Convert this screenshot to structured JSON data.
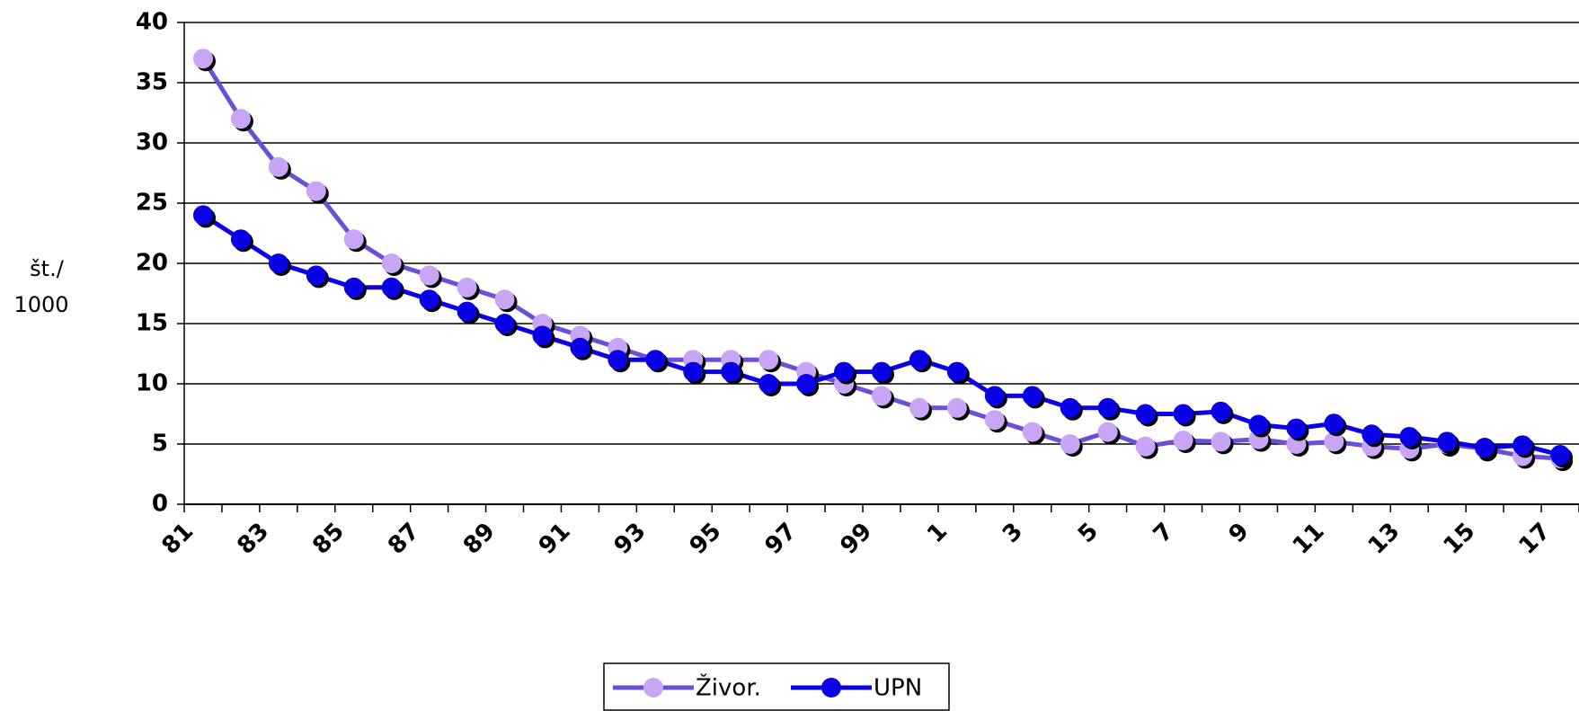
{
  "chart_data": {
    "type": "line",
    "y_label": [
      "št./",
      "1000"
    ],
    "categories": [
      "81",
      null,
      "83",
      null,
      "85",
      null,
      "87",
      null,
      "89",
      null,
      "91",
      null,
      "93",
      null,
      "95",
      null,
      "97",
      null,
      "99",
      null,
      "1",
      null,
      "3",
      null,
      "5",
      null,
      "7",
      null,
      "9",
      null,
      "11",
      null,
      "13",
      null,
      "15",
      null,
      "17"
    ],
    "series": [
      {
        "name": "Živor.",
        "color": "#6a4fd8",
        "marker_color": "#c9a6f5",
        "values": [
          37,
          32,
          28,
          26,
          22,
          20,
          19,
          18,
          17,
          15,
          14,
          13,
          12,
          12,
          12,
          12,
          11,
          10,
          9,
          8,
          8,
          7,
          6,
          5,
          6,
          4.8,
          5.3,
          5.2,
          5.4,
          5,
          5.2,
          4.8,
          4.6,
          5,
          4.6,
          4,
          3.8
        ]
      },
      {
        "name": "UPN",
        "color": "#0a00e6",
        "marker_color": "#0a00e6",
        "values": [
          24,
          22,
          20,
          19,
          18,
          18,
          17,
          16,
          15,
          14,
          13,
          12,
          12,
          11,
          11,
          10,
          10,
          11,
          11,
          12,
          11,
          9,
          9,
          8,
          8,
          7.5,
          7.5,
          7.7,
          6.6,
          6.3,
          6.7,
          5.8,
          5.6,
          5.2,
          4.7,
          4.9,
          4.1
        ]
      }
    ],
    "ylim": [
      0,
      40
    ],
    "yticks": [
      0,
      5,
      10,
      15,
      20,
      25,
      30,
      35,
      40
    ],
    "grid": true,
    "legend": "bottom"
  }
}
